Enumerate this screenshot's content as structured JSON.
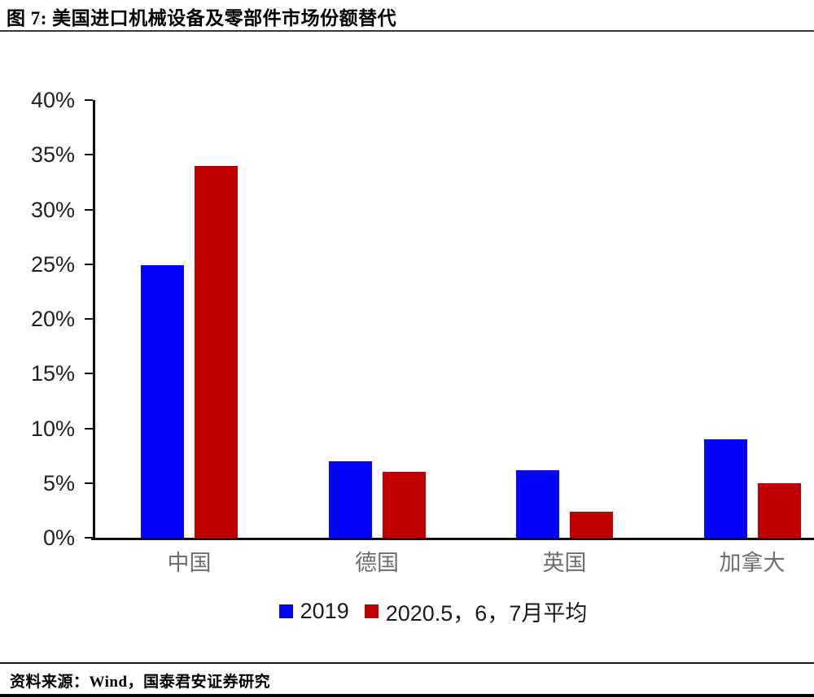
{
  "header": {
    "title": "图 7: 美国进口机械设备及零部件市场份额替代"
  },
  "footer": {
    "source": "资料来源：Wind，国泰君安证券研究"
  },
  "chart_data": {
    "type": "bar",
    "title": "美国进口机械设备及零部件市场份额替代",
    "categories": [
      "中国",
      "德国",
      "英国",
      "加拿大"
    ],
    "series": [
      {
        "name": "2019",
        "color": "#0404f8",
        "values": [
          24.9,
          7.0,
          6.2,
          9.0
        ]
      },
      {
        "name": "2020.5，6，7月平均",
        "color": "#c00000",
        "values": [
          34.0,
          6.0,
          2.4,
          5.0
        ]
      }
    ],
    "xlabel": "",
    "ylabel": "",
    "ylim": [
      0,
      40
    ],
    "ytick_step": 5,
    "yticks": [
      "0%",
      "5%",
      "10%",
      "15%",
      "20%",
      "25%",
      "30%",
      "35%",
      "40%"
    ],
    "grid": false,
    "legend_position": "bottom"
  },
  "colors": {
    "axis": "#111111",
    "tick_label": "#212121",
    "category_label": "#6e6e6e",
    "series_blue": "#0404f8",
    "series_red": "#c00000"
  }
}
